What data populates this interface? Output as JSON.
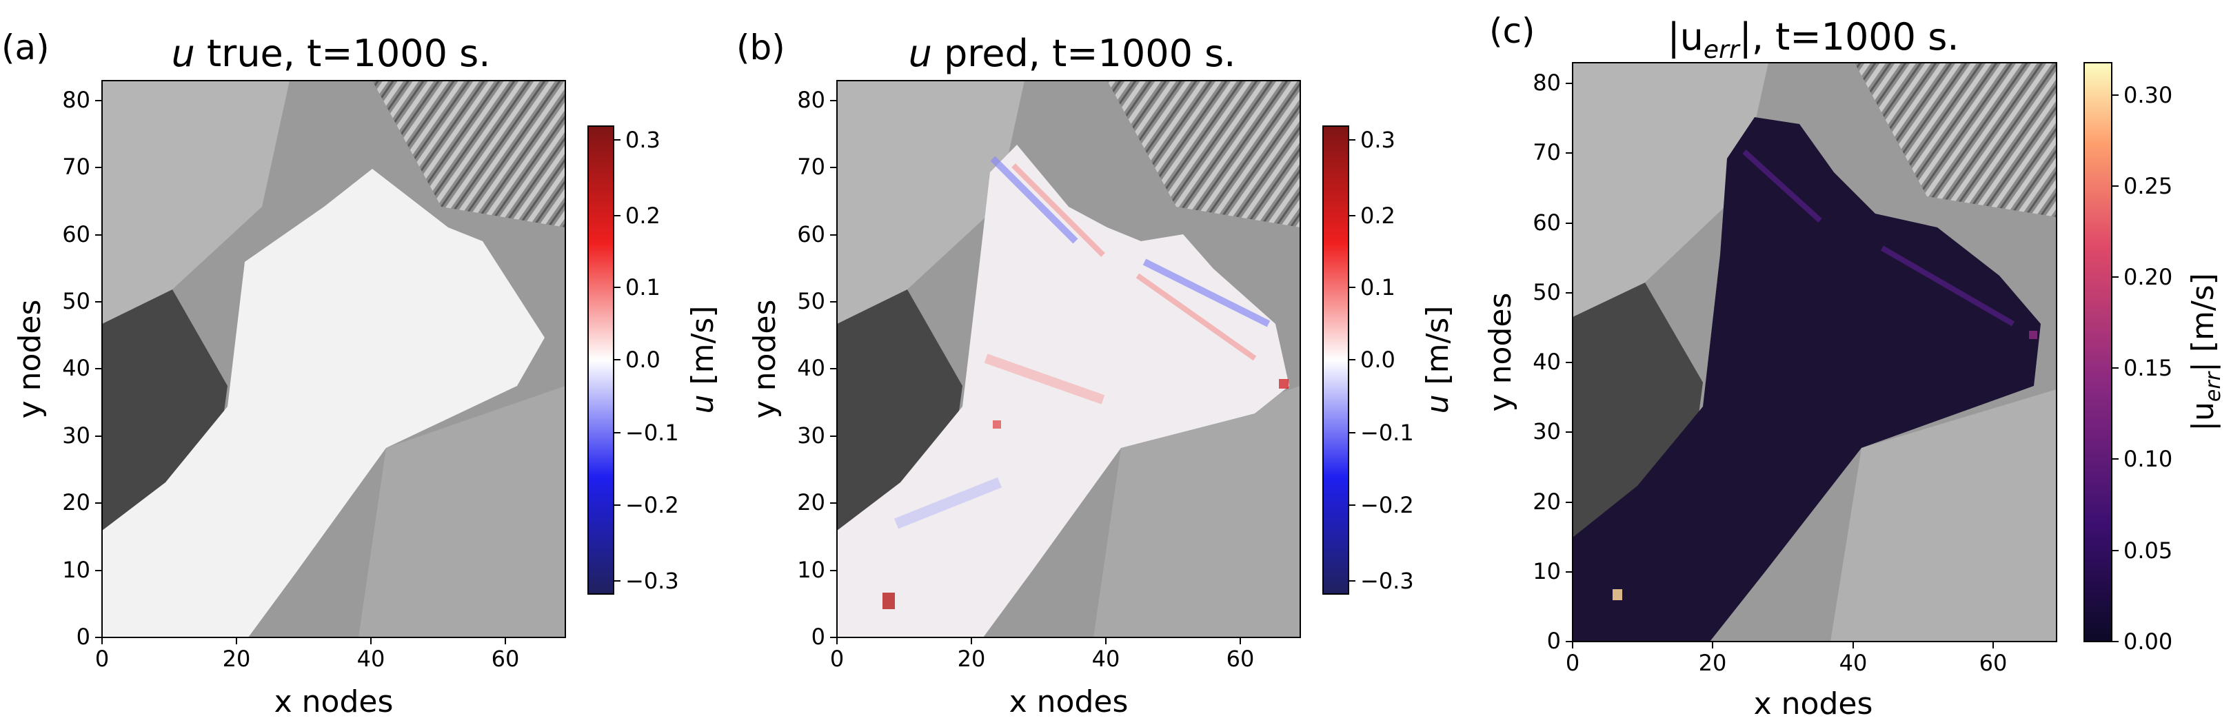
{
  "chart_data": [
    {
      "type": "heatmap",
      "panel_label": "(a)",
      "title_parts": [
        "u",
        " true, t=1000 s."
      ],
      "xlabel": "x nodes",
      "ylabel": "y nodes",
      "xlim": [
        0,
        69
      ],
      "ylim": [
        0,
        83
      ],
      "xticks": [
        "0",
        "20",
        "40",
        "60"
      ],
      "yticks": [
        "0",
        "10",
        "20",
        "30",
        "40",
        "50",
        "60",
        "70",
        "80"
      ],
      "colorbar": {
        "colormap": "seismic",
        "label_parts": [
          "u",
          " [m/s]"
        ],
        "range": [
          -0.33,
          0.33
        ],
        "ticks": [
          "0.3",
          "0.2",
          "0.1",
          "0.0",
          "−0.1",
          "−0.2",
          "−0.3"
        ],
        "colors": [
          "#20205e",
          "#1f1ff0",
          "#ffffff",
          "#f01f1f",
          "#7e1414"
        ]
      },
      "field": "velocity-u-true"
    },
    {
      "type": "heatmap",
      "panel_label": "(b)",
      "title_parts": [
        "u",
        " pred, t=1000 s."
      ],
      "xlabel": "x nodes",
      "ylabel": "y nodes",
      "xlim": [
        0,
        69
      ],
      "ylim": [
        0,
        83
      ],
      "xticks": [
        "0",
        "20",
        "40",
        "60"
      ],
      "yticks": [
        "0",
        "10",
        "20",
        "30",
        "40",
        "50",
        "60",
        "70",
        "80"
      ],
      "colorbar": {
        "colormap": "seismic",
        "label_parts": [
          "u",
          " [m/s]"
        ],
        "range": [
          -0.33,
          0.33
        ],
        "ticks": [
          "0.3",
          "0.2",
          "0.1",
          "0.0",
          "−0.1",
          "−0.2",
          "−0.3"
        ],
        "colors": [
          "#20205e",
          "#1f1ff0",
          "#ffffff",
          "#f01f1f",
          "#7e1414"
        ]
      },
      "field": "velocity-u-pred"
    },
    {
      "type": "heatmap",
      "panel_label": "(c)",
      "title_parts": [
        "|u",
        "err",
        "|, t=1000 s."
      ],
      "xlabel": "x nodes",
      "ylabel": "y nodes",
      "xlim": [
        0,
        69
      ],
      "ylim": [
        0,
        83
      ],
      "xticks": [
        "0",
        "20",
        "40",
        "60"
      ],
      "yticks": [
        "0",
        "10",
        "20",
        "30",
        "40",
        "50",
        "60",
        "70",
        "80"
      ],
      "colorbar": {
        "colormap": "magma",
        "label_parts": [
          "|u",
          "err",
          "| [m/s]"
        ],
        "range": [
          0.0,
          0.32
        ],
        "ticks": [
          "0.30",
          "0.25",
          "0.20",
          "0.15",
          "0.10",
          "0.05",
          "0.00"
        ],
        "colors": [
          "#0c0926",
          "#3b0f70",
          "#8c2981",
          "#de4968",
          "#fe9f6d",
          "#fcfdbf"
        ]
      },
      "field": "velocity-u-abs-error"
    }
  ]
}
